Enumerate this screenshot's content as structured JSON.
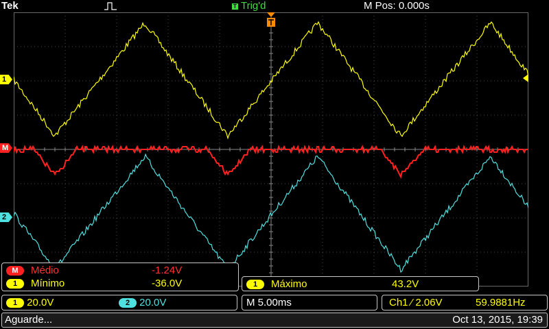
{
  "header": {
    "brand": "Tek",
    "trigger_state": "Trig'd",
    "trigger_icon": "T",
    "horizontal_position": "M Pos: 0.000s"
  },
  "markers": {
    "ch1": "1",
    "math": "M",
    "ch2": "2"
  },
  "measurements": {
    "medio": {
      "badge": "M",
      "label": "Médio",
      "value": "-1.24V"
    },
    "minimo": {
      "badge": "1",
      "label": "Mínimo",
      "value": "-36.0V"
    },
    "maximo": {
      "badge": "1",
      "label": "Máximo",
      "value": "43.2V"
    }
  },
  "status": {
    "ch1_badge": "1",
    "ch1_scale": "20.0V",
    "ch2_badge": "2",
    "ch2_scale": "20.0V",
    "timebase": "M 5.00ms",
    "trigger_level": "Ch1 ⁄ 2.06V",
    "frequency": "59.9881Hz"
  },
  "message_bar": {
    "message": "Aguarde...",
    "datetime": "Oct 13, 2015, 19:39"
  },
  "colors": {
    "ch1": "#ffff00",
    "ch2": "#4fe0e0",
    "math": "#ff2020",
    "grid": "#4a4a4a",
    "trigger": "#ff8c00"
  }
}
